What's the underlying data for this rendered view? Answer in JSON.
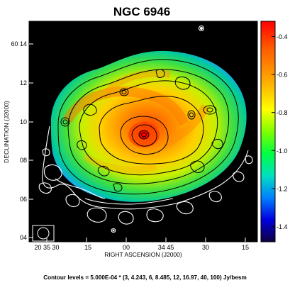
{
  "title": "NGC 6946",
  "image": {
    "xlabel": "RIGHT ASCENSION (J2000)",
    "ylabel": "DECLINATION (J2000)",
    "xticks": [
      "20 35 30",
      "15",
      "00",
      "34 45",
      "30",
      "15"
    ],
    "yticks": [
      "60 14",
      "12",
      "10",
      "08",
      "06",
      "04"
    ],
    "colorbar": {
      "ticks": [
        "-0.4",
        "-0.6",
        "-0.8",
        "-1.0",
        "-1.2",
        "-1.4"
      ],
      "values": [
        -0.4,
        -0.6,
        -0.8,
        -1.0,
        -1.2,
        -1.4
      ],
      "range": [
        -1.48,
        -0.32
      ]
    },
    "contour_caption": "Contour levels = 5.000E-04 * (3, 4.243, 6, 8.485, 12, 16.97, 40, 100) Jy/besm",
    "colors": {
      "background": "#000000",
      "contour_outer": "#ffffff",
      "contour_inner": "#000000"
    }
  }
}
